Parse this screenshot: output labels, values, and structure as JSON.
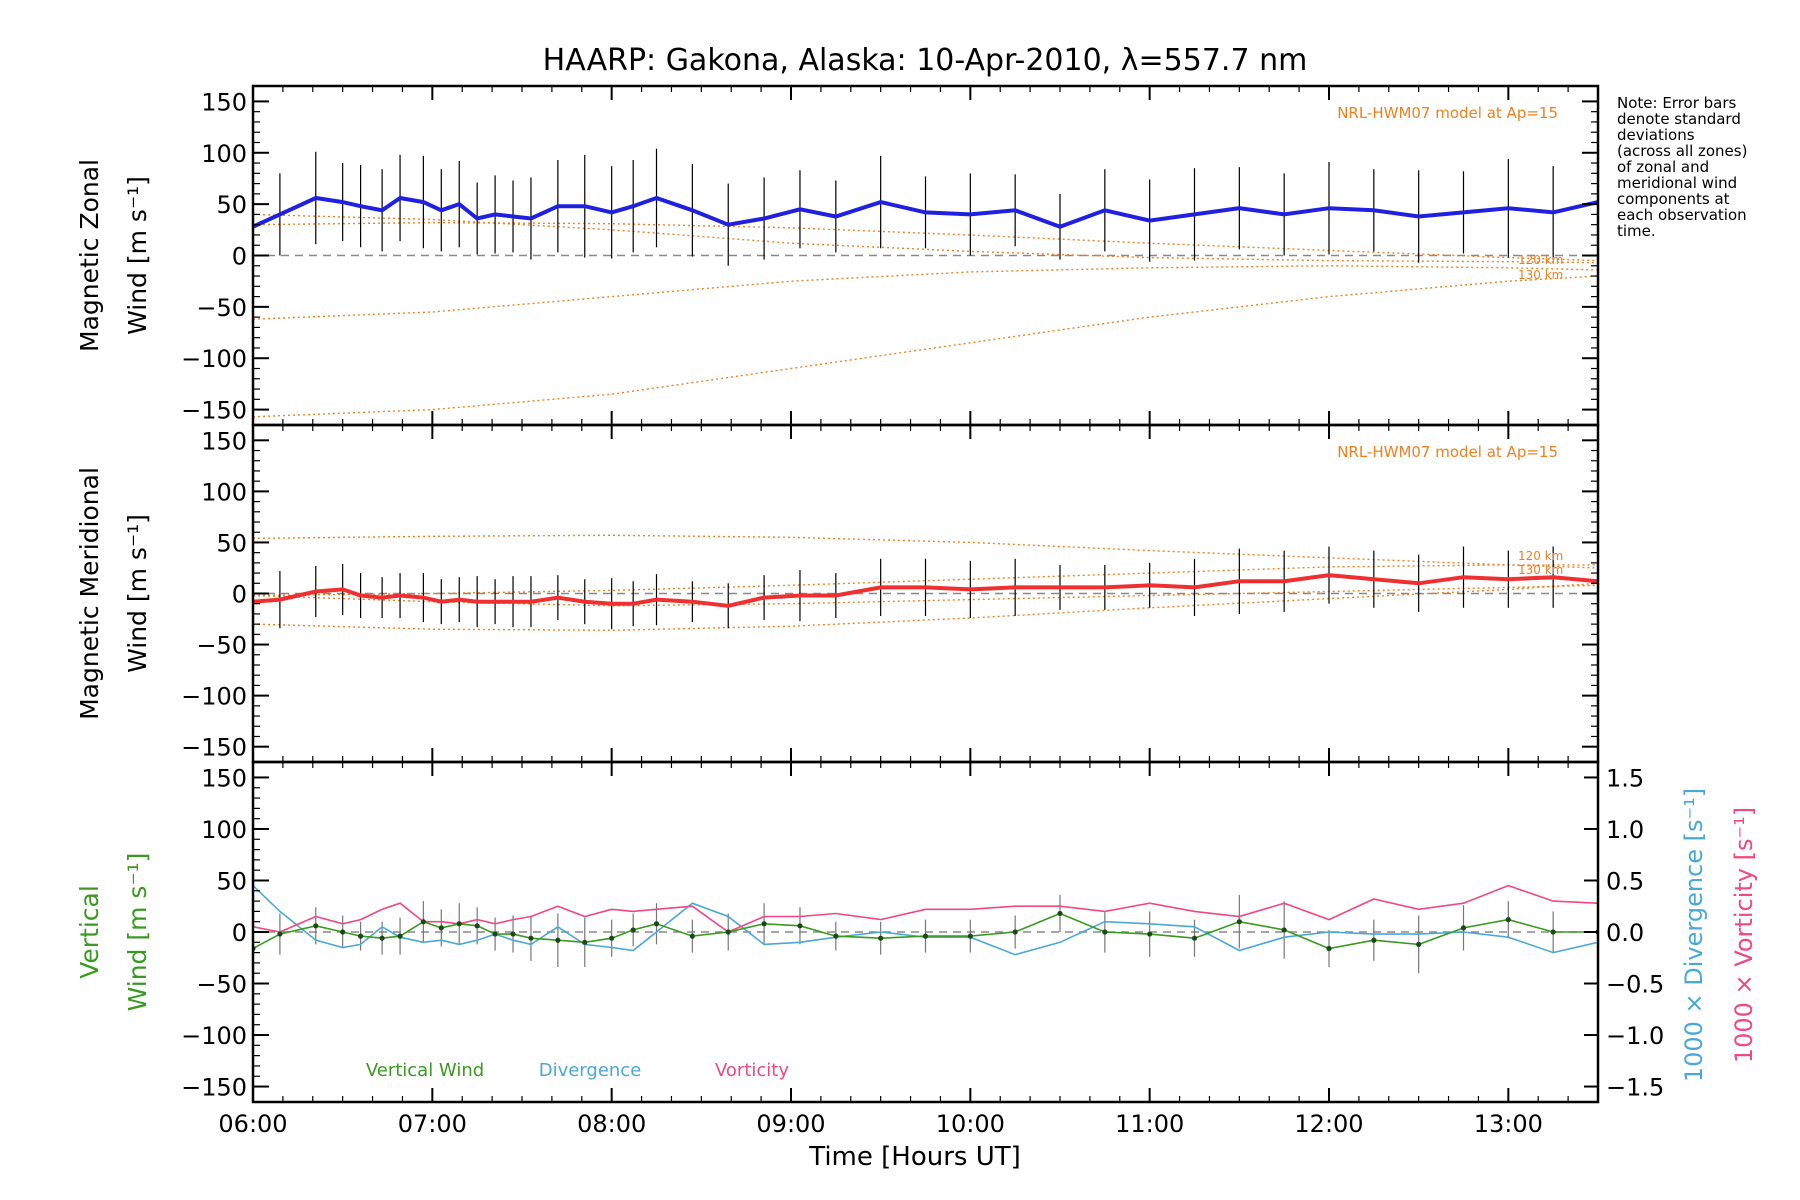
{
  "chart_data": {
    "type": "line",
    "title": "HAARP: Gakona,  Alaska: 10-Apr-2010, λ=557.7 nm",
    "xlabel": "Time [Hours UT]",
    "xlim": [
      6.0,
      13.5
    ],
    "x_ticks": [
      "06:00",
      "07:00",
      "08:00",
      "09:00",
      "10:00",
      "11:00",
      "12:00",
      "13:00"
    ],
    "x_tick_values": [
      6,
      7,
      8,
      9,
      10,
      11,
      12,
      13
    ],
    "note": [
      "Note: Error bars",
      "denote standard",
      "deviations",
      "(across all zones)",
      "of zonal and",
      "meridional wind",
      "components at",
      "each observation",
      "time."
    ],
    "colors": {
      "zonal": "#2020e0",
      "meridional": "#f03030",
      "vertical": "#3a9a20",
      "divergence": "#4aa8d8",
      "vorticity": "#f04880",
      "model": "#f08020",
      "error_bar": "#000000"
    },
    "panels": [
      {
        "id": "zonal",
        "ylabel_line1": "Magnetic Zonal",
        "ylabel_line2": "Wind [m s⁻¹]",
        "ylim": [
          -165,
          165
        ],
        "y_ticks": [
          150,
          100,
          50,
          0,
          -50,
          -100,
          -150
        ],
        "model_label": "NRL-HWM07 model at Ap=15",
        "model_alt_labels": [
          "120 km",
          "130 km"
        ],
        "series": {
          "x": [
            6.0,
            6.15,
            6.35,
            6.5,
            6.6,
            6.72,
            6.82,
            6.95,
            7.05,
            7.15,
            7.25,
            7.35,
            7.45,
            7.55,
            7.7,
            7.85,
            8.0,
            8.12,
            8.25,
            8.45,
            8.65,
            8.85,
            9.05,
            9.25,
            9.5,
            9.75,
            10.0,
            10.25,
            10.5,
            10.75,
            11.0,
            11.25,
            11.5,
            11.75,
            12.0,
            12.25,
            12.5,
            12.75,
            13.0,
            13.25,
            13.5
          ],
          "y": [
            28,
            40,
            56,
            52,
            48,
            44,
            56,
            52,
            44,
            50,
            36,
            40,
            38,
            36,
            48,
            48,
            42,
            48,
            56,
            44,
            30,
            36,
            45,
            38,
            52,
            42,
            40,
            44,
            28,
            44,
            34,
            40,
            46,
            40,
            46,
            44,
            38,
            42,
            46,
            42,
            52
          ],
          "err": [
            30,
            40,
            45,
            38,
            40,
            40,
            42,
            45,
            40,
            42,
            35,
            38,
            35,
            40,
            45,
            50,
            45,
            45,
            48,
            45,
            40,
            40,
            38,
            35,
            45,
            35,
            40,
            35,
            32,
            40,
            40,
            45,
            40,
            40,
            45,
            40,
            45,
            40,
            48,
            45,
            55
          ]
        },
        "model_curves": [
          {
            "x": [
              6,
              7,
              8,
              9,
              10,
              11,
              12,
              13,
              13.5
            ],
            "y": [
              30,
              32,
              31,
              27,
              20,
              12,
              5,
              -2,
              -5
            ]
          },
          {
            "x": [
              6,
              7,
              8,
              9,
              10,
              11,
              12,
              13,
              13.5
            ],
            "y": [
              40,
              35,
              25,
              12,
              4,
              -2,
              -5,
              -6,
              -7
            ]
          },
          {
            "x": [
              6,
              7,
              8,
              9,
              10,
              11,
              12,
              13,
              13.5
            ],
            "y": [
              -62,
              -55,
              -40,
              -25,
              -16,
              -12,
              -10,
              -12,
              -14
            ]
          },
          {
            "x": [
              6,
              7,
              8,
              9,
              10,
              11,
              12,
              13,
              13.5
            ],
            "y": [
              -157,
              -150,
              -135,
              -110,
              -85,
              -60,
              -40,
              -25,
              -20
            ]
          }
        ]
      },
      {
        "id": "meridional",
        "ylabel_line1": "Magnetic Meridional",
        "ylabel_line2": "Wind [m s⁻¹]",
        "ylim": [
          -165,
          165
        ],
        "y_ticks": [
          150,
          100,
          50,
          0,
          -50,
          -100,
          -150
        ],
        "model_label": "NRL-HWM07 model at Ap=15",
        "model_alt_labels": [
          "120 km",
          "130 km"
        ],
        "series": {
          "x": [
            6.0,
            6.15,
            6.35,
            6.5,
            6.6,
            6.72,
            6.82,
            6.95,
            7.05,
            7.15,
            7.25,
            7.35,
            7.45,
            7.55,
            7.7,
            7.85,
            8.0,
            8.12,
            8.25,
            8.45,
            8.65,
            8.85,
            9.05,
            9.25,
            9.5,
            9.75,
            10.0,
            10.25,
            10.5,
            10.75,
            11.0,
            11.25,
            11.5,
            11.75,
            12.0,
            12.25,
            12.5,
            12.75,
            13.0,
            13.25,
            13.5
          ],
          "y": [
            -8,
            -6,
            2,
            4,
            -2,
            -4,
            -2,
            -4,
            -8,
            -6,
            -8,
            -8,
            -8,
            -8,
            -4,
            -8,
            -10,
            -10,
            -6,
            -8,
            -12,
            -4,
            -2,
            -2,
            6,
            6,
            4,
            6,
            6,
            6,
            8,
            6,
            12,
            12,
            18,
            14,
            10,
            16,
            14,
            16,
            12
          ],
          "err": [
            25,
            28,
            25,
            25,
            22,
            20,
            22,
            24,
            22,
            22,
            25,
            22,
            25,
            25,
            22,
            22,
            25,
            22,
            25,
            20,
            22,
            22,
            25,
            22,
            28,
            28,
            28,
            28,
            22,
            22,
            22,
            28,
            32,
            30,
            28,
            28,
            28,
            30,
            28,
            30,
            38
          ]
        },
        "model_curves": [
          {
            "x": [
              6,
              7,
              8,
              9,
              10,
              11,
              12,
              13,
              13.5
            ],
            "y": [
              54,
              56,
              57,
              55,
              50,
              42,
              35,
              28,
              25
            ]
          },
          {
            "x": [
              6,
              7,
              8,
              9,
              10,
              11,
              12,
              13,
              13.5
            ],
            "y": [
              -2,
              0,
              3,
              8,
              14,
              20,
              26,
              28,
              28
            ]
          },
          {
            "x": [
              6,
              7,
              8,
              9,
              10,
              11,
              12,
              13,
              13.5
            ],
            "y": [
              -30,
              -35,
              -36,
              -32,
              -24,
              -14,
              -5,
              4,
              10
            ]
          },
          {
            "x": [
              6,
              7,
              8,
              9,
              10,
              11,
              12,
              13,
              13.5
            ],
            "y": [
              -2,
              -8,
              -12,
              -10,
              -6,
              -2,
              2,
              6,
              8
            ]
          }
        ]
      },
      {
        "id": "vertical",
        "ylabel_line1": "Vertical",
        "ylabel_line2": "Wind [m s⁻¹]",
        "ylim": [
          -165,
          165
        ],
        "y_ticks": [
          150,
          100,
          50,
          0,
          -50,
          -100,
          -150
        ],
        "right_axis": {
          "ylim": [
            -1.65,
            1.65
          ],
          "ticks": [
            "1.5",
            "1.0",
            "0.5",
            "0.0",
            "−0.5",
            "−1.0",
            "−1.5"
          ],
          "tick_values": [
            1.5,
            1.0,
            0.5,
            0.0,
            -0.5,
            -1.0,
            -1.5
          ],
          "label_divergence": "1000 × Divergence [s⁻¹]",
          "label_vorticity": "1000 × Vorticity [s⁻¹]"
        },
        "legend": [
          "Vertical Wind",
          "Divergence",
          "Vorticity"
        ],
        "vertical_wind": {
          "x": [
            6.0,
            6.15,
            6.35,
            6.5,
            6.6,
            6.72,
            6.82,
            6.95,
            7.05,
            7.15,
            7.25,
            7.35,
            7.45,
            7.55,
            7.7,
            7.85,
            8.0,
            8.12,
            8.25,
            8.45,
            8.65,
            8.85,
            9.05,
            9.25,
            9.5,
            9.75,
            10.0,
            10.25,
            10.5,
            10.75,
            11.0,
            11.25,
            11.5,
            11.75,
            12.0,
            12.25,
            12.5,
            12.75,
            13.0,
            13.25,
            13.5
          ],
          "y": [
            -16,
            -2,
            6,
            0,
            -4,
            -6,
            -4,
            10,
            4,
            8,
            6,
            -2,
            -2,
            -6,
            -8,
            -10,
            -6,
            2,
            8,
            -4,
            0,
            8,
            6,
            -4,
            -6,
            -4,
            -4,
            0,
            18,
            0,
            -2,
            -6,
            10,
            2,
            -16,
            -8,
            -12,
            4,
            12,
            0,
            0
          ],
          "err": [
            18,
            20,
            18,
            16,
            14,
            16,
            18,
            20,
            18,
            20,
            18,
            16,
            18,
            22,
            26,
            24,
            18,
            16,
            20,
            16,
            18,
            20,
            18,
            14,
            16,
            16,
            16,
            16,
            18,
            20,
            22,
            18,
            26,
            28,
            18,
            20,
            28,
            22,
            18,
            20,
            30
          ]
        },
        "divergence": {
          "x": [
            6.0,
            6.15,
            6.35,
            6.5,
            6.6,
            6.72,
            6.82,
            6.95,
            7.05,
            7.15,
            7.25,
            7.35,
            7.45,
            7.55,
            7.7,
            7.85,
            8.0,
            8.12,
            8.25,
            8.45,
            8.65,
            8.85,
            9.05,
            9.25,
            9.5,
            9.75,
            10.0,
            10.25,
            10.5,
            10.75,
            11.0,
            11.25,
            11.5,
            11.75,
            12.0,
            12.25,
            12.5,
            12.75,
            13.0,
            13.25,
            13.5
          ],
          "y": [
            0.45,
            0.2,
            -0.08,
            -0.15,
            -0.12,
            0.05,
            -0.05,
            -0.1,
            -0.08,
            -0.12,
            -0.08,
            -0.02,
            -0.08,
            -0.12,
            0.05,
            -0.12,
            -0.15,
            -0.18,
            0.0,
            0.28,
            0.15,
            -0.12,
            -0.1,
            -0.05,
            0.0,
            -0.05,
            -0.05,
            -0.22,
            -0.1,
            0.1,
            0.08,
            0.05,
            -0.18,
            -0.05,
            0.0,
            -0.02,
            -0.02,
            0.0,
            -0.05,
            -0.2,
            -0.1
          ]
        },
        "vorticity": {
          "x": [
            6.0,
            6.15,
            6.35,
            6.5,
            6.6,
            6.72,
            6.82,
            6.95,
            7.05,
            7.15,
            7.25,
            7.35,
            7.45,
            7.55,
            7.7,
            7.85,
            8.0,
            8.12,
            8.25,
            8.45,
            8.65,
            8.85,
            9.05,
            9.25,
            9.5,
            9.75,
            10.0,
            10.25,
            10.5,
            10.75,
            11.0,
            11.25,
            11.5,
            11.75,
            12.0,
            12.25,
            12.5,
            12.75,
            13.0,
            13.25,
            13.5
          ],
          "y": [
            0.05,
            0.0,
            0.15,
            0.08,
            0.12,
            0.22,
            0.28,
            0.1,
            0.1,
            0.08,
            0.12,
            0.08,
            0.12,
            0.15,
            0.25,
            0.15,
            0.22,
            0.2,
            0.22,
            0.25,
            0.0,
            0.15,
            0.15,
            0.18,
            0.12,
            0.22,
            0.22,
            0.25,
            0.25,
            0.2,
            0.28,
            0.2,
            0.15,
            0.28,
            0.12,
            0.32,
            0.22,
            0.28,
            0.45,
            0.3,
            0.28
          ]
        }
      }
    ]
  }
}
